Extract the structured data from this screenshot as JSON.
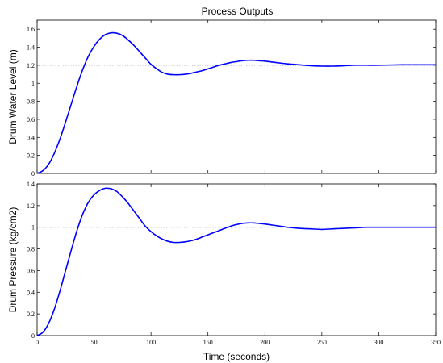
{
  "figure": {
    "title": "Process Outputs",
    "xlabel": "Time (seconds)"
  },
  "chart_data": [
    {
      "type": "line",
      "title": "Process Outputs",
      "xlabel": "",
      "ylabel": "Drum Water Level (m)",
      "xlim": [
        0,
        350
      ],
      "ylim": [
        0,
        1.7
      ],
      "xticks": [
        0,
        50,
        100,
        150,
        200,
        250,
        300,
        350
      ],
      "yticks": [
        0,
        0.2,
        0.4,
        0.6,
        0.8,
        1,
        1.2,
        1.4,
        1.6
      ],
      "ytick_labels": [
        "0",
        "0.2",
        "0.4",
        "0.6",
        "0.8",
        "1",
        "1.2",
        "1.4",
        "1.6"
      ],
      "show_xtick_labels": false,
      "grid": false,
      "reference_line": {
        "y": 1.2,
        "style": "dotted",
        "color": "#808080"
      },
      "series": [
        {
          "color": "#0000ff",
          "x": [
            0,
            5,
            10,
            15,
            20,
            25,
            30,
            35,
            40,
            45,
            50,
            55,
            60,
            65,
            70,
            75,
            80,
            85,
            90,
            95,
            100,
            105,
            110,
            115,
            120,
            125,
            130,
            135,
            140,
            145,
            150,
            155,
            160,
            165,
            170,
            175,
            180,
            185,
            190,
            195,
            200,
            210,
            220,
            230,
            240,
            250,
            260,
            270,
            280,
            290,
            300,
            320,
            340,
            350
          ],
          "y": [
            0,
            0.03,
            0.1,
            0.22,
            0.38,
            0.57,
            0.77,
            0.97,
            1.15,
            1.3,
            1.41,
            1.49,
            1.54,
            1.56,
            1.555,
            1.53,
            1.48,
            1.42,
            1.35,
            1.28,
            1.21,
            1.16,
            1.12,
            1.1,
            1.095,
            1.095,
            1.1,
            1.11,
            1.125,
            1.14,
            1.16,
            1.18,
            1.2,
            1.215,
            1.23,
            1.24,
            1.25,
            1.255,
            1.255,
            1.25,
            1.245,
            1.23,
            1.215,
            1.205,
            1.195,
            1.19,
            1.19,
            1.195,
            1.2,
            1.2,
            1.2,
            1.205,
            1.205,
            1.205
          ]
        }
      ]
    },
    {
      "type": "line",
      "title": "",
      "xlabel": "Time (seconds)",
      "ylabel": "Drum Pressure (kg/cm2)",
      "xlim": [
        0,
        350
      ],
      "ylim": [
        0,
        1.4
      ],
      "xticks": [
        0,
        50,
        100,
        150,
        200,
        250,
        300,
        350
      ],
      "xtick_labels": [
        "0",
        "50",
        "100",
        "150",
        "200",
        "250",
        "300",
        "350"
      ],
      "yticks": [
        0,
        0.2,
        0.4,
        0.6,
        0.8,
        1,
        1.2,
        1.4
      ],
      "ytick_labels": [
        "0",
        "0.2",
        "0.4",
        "0.6",
        "0.8",
        "1",
        "1.2",
        "1.4"
      ],
      "show_xtick_labels": true,
      "grid": false,
      "reference_line": {
        "y": 1.0,
        "style": "dotted",
        "color": "#808080"
      },
      "series": [
        {
          "color": "#0000ff",
          "x": [
            0,
            5,
            10,
            15,
            20,
            25,
            30,
            35,
            40,
            45,
            50,
            55,
            60,
            65,
            70,
            75,
            80,
            85,
            90,
            95,
            100,
            105,
            110,
            115,
            120,
            125,
            130,
            135,
            140,
            145,
            150,
            155,
            160,
            165,
            170,
            175,
            180,
            185,
            190,
            195,
            200,
            210,
            220,
            230,
            240,
            250,
            260,
            270,
            280,
            290,
            300,
            320,
            340,
            350
          ],
          "y": [
            0,
            0.03,
            0.11,
            0.24,
            0.41,
            0.6,
            0.79,
            0.97,
            1.12,
            1.23,
            1.3,
            1.34,
            1.36,
            1.355,
            1.33,
            1.28,
            1.22,
            1.15,
            1.08,
            1.01,
            0.96,
            0.92,
            0.89,
            0.87,
            0.86,
            0.86,
            0.865,
            0.875,
            0.89,
            0.91,
            0.93,
            0.95,
            0.97,
            0.99,
            1.01,
            1.025,
            1.035,
            1.04,
            1.04,
            1.035,
            1.03,
            1.015,
            1.0,
            0.99,
            0.985,
            0.98,
            0.985,
            0.99,
            0.995,
            1.0,
            1.0,
            1.0,
            1.0,
            1.0
          ]
        }
      ]
    }
  ]
}
